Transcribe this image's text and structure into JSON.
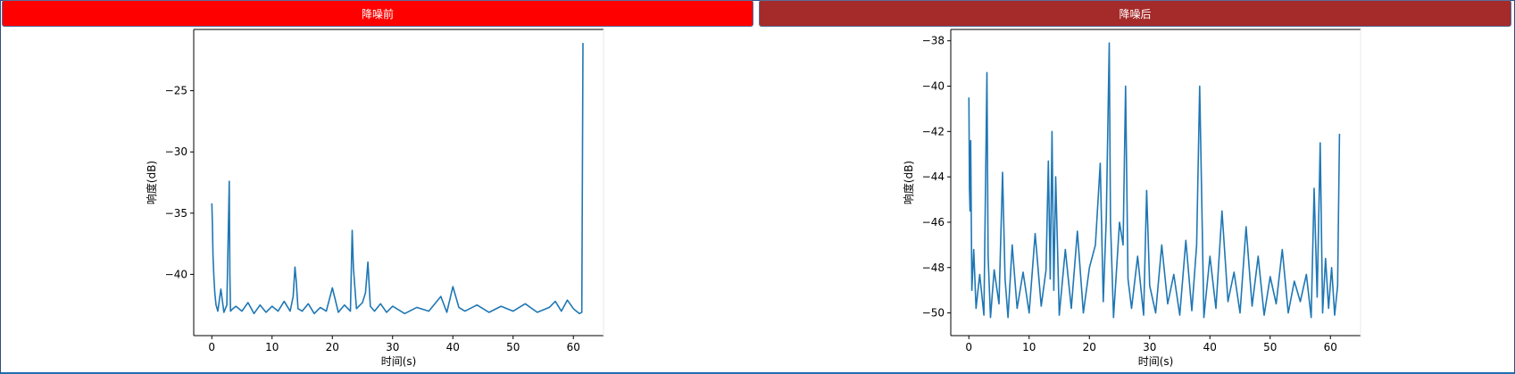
{
  "panels": [
    {
      "id": "before",
      "header": "降噪前",
      "header_color": "#ff0000"
    },
    {
      "id": "after",
      "header": "降噪后",
      "header_color": "#a52a2a"
    }
  ],
  "chart_data": [
    {
      "type": "line",
      "title": "",
      "xlabel": "时间(s)",
      "ylabel": "响度(dB)",
      "xlim": [
        -3,
        65
      ],
      "ylim": [
        -45,
        -20
      ],
      "xticks": [
        0,
        10,
        20,
        30,
        40,
        50,
        60
      ],
      "yticks": [
        -25,
        -30,
        -35,
        -40
      ],
      "line_color": "#1f77b4",
      "series": [
        {
          "x": [
            0.0,
            0.1,
            0.2,
            0.35,
            0.5,
            0.7,
            1.0,
            1.5,
            2.0,
            2.5,
            2.9,
            3.0,
            3.1,
            3.5,
            4.0,
            5.0,
            6.0,
            7.0,
            8.0,
            9.0,
            10.0,
            11.0,
            12.0,
            13.0,
            13.5,
            13.8,
            14.0,
            14.3,
            15.0,
            16.0,
            17.0,
            18.0,
            19.0,
            20.0,
            21.0,
            22.0,
            23.0,
            23.3,
            23.5,
            24.0,
            25.0,
            25.5,
            25.9,
            26.3,
            27.0,
            28.0,
            29.0,
            30.0,
            32.0,
            34.0,
            36.0,
            38.0,
            39.0,
            40.0,
            41.0,
            42.0,
            44.0,
            46.0,
            48.0,
            50.0,
            52.0,
            54.0,
            56.0,
            57.0,
            58.0,
            59.0,
            60.0,
            60.5,
            61.0,
            61.4,
            61.6
          ],
          "y": [
            -34.2,
            -35.8,
            -38.5,
            -40.2,
            -41.5,
            -42.5,
            -43.0,
            -41.2,
            -43.1,
            -42.5,
            -32.4,
            -40.0,
            -43.0,
            -42.8,
            -42.6,
            -43.0,
            -42.3,
            -43.2,
            -42.5,
            -43.1,
            -42.6,
            -43.0,
            -42.2,
            -43.0,
            -41.8,
            -39.4,
            -40.5,
            -42.8,
            -43.0,
            -42.4,
            -43.2,
            -42.7,
            -43.0,
            -41.1,
            -43.1,
            -42.5,
            -43.0,
            -36.4,
            -39.5,
            -42.8,
            -42.3,
            -41.5,
            -39.0,
            -42.6,
            -43.0,
            -42.4,
            -43.1,
            -42.6,
            -43.2,
            -42.7,
            -43.0,
            -41.8,
            -43.1,
            -41.0,
            -42.7,
            -43.0,
            -42.5,
            -43.1,
            -42.6,
            -43.0,
            -42.4,
            -43.1,
            -42.7,
            -42.2,
            -43.0,
            -42.1,
            -42.8,
            -43.0,
            -43.2,
            -43.1,
            -21.1
          ]
        }
      ]
    },
    {
      "type": "line",
      "title": "",
      "xlabel": "时间(s)",
      "ylabel": "响度(dB)",
      "xlim": [
        -3,
        65
      ],
      "ylim": [
        -51,
        -37.5
      ],
      "xticks": [
        0,
        10,
        20,
        30,
        40,
        50,
        60
      ],
      "yticks": [
        -38,
        -40,
        -42,
        -44,
        -46,
        -48,
        -50
      ],
      "line_color": "#1f77b4",
      "series": [
        {
          "x": [
            0.0,
            0.1,
            0.2,
            0.3,
            0.5,
            0.8,
            1.2,
            1.8,
            2.5,
            3.0,
            3.2,
            3.6,
            4.2,
            5.0,
            5.6,
            6.0,
            6.5,
            7.2,
            8.0,
            9.0,
            10.0,
            11.0,
            12.0,
            12.8,
            13.2,
            13.5,
            13.8,
            14.1,
            14.4,
            15.0,
            16.0,
            17.0,
            18.0,
            19.0,
            20.0,
            21.0,
            21.8,
            22.3,
            22.8,
            23.3,
            23.5,
            24.0,
            25.0,
            25.6,
            26.0,
            26.4,
            27.0,
            28.0,
            29.0,
            29.5,
            30.0,
            31.0,
            32.0,
            33.0,
            34.0,
            35.0,
            36.0,
            37.0,
            37.8,
            38.3,
            39.0,
            40.0,
            41.0,
            42.0,
            43.0,
            44.0,
            45.0,
            46.0,
            47.0,
            48.0,
            49.0,
            50.0,
            51.0,
            52.0,
            53.0,
            54.0,
            55.0,
            56.0,
            56.8,
            57.3,
            57.8,
            58.3,
            58.7,
            59.2,
            59.7,
            60.2,
            60.7,
            61.2,
            61.5
          ],
          "y": [
            -40.5,
            -44.5,
            -45.5,
            -42.4,
            -49.0,
            -47.2,
            -49.8,
            -48.3,
            -50.1,
            -39.4,
            -47.5,
            -50.2,
            -48.1,
            -49.6,
            -43.8,
            -48.5,
            -50.2,
            -47.0,
            -49.8,
            -48.2,
            -50.0,
            -46.5,
            -49.7,
            -48.1,
            -43.3,
            -48.5,
            -42.0,
            -49.0,
            -44.0,
            -50.1,
            -47.2,
            -49.8,
            -46.4,
            -50.0,
            -48.0,
            -47.0,
            -43.4,
            -49.5,
            -45.8,
            -38.1,
            -46.0,
            -50.2,
            -46.0,
            -47.0,
            -40.0,
            -48.5,
            -49.8,
            -47.5,
            -50.1,
            -44.6,
            -48.8,
            -50.0,
            -47.0,
            -49.6,
            -48.3,
            -50.1,
            -46.8,
            -49.9,
            -47.0,
            -40.0,
            -50.2,
            -47.5,
            -49.8,
            -45.5,
            -49.5,
            -48.2,
            -50.0,
            -46.2,
            -49.7,
            -47.5,
            -50.1,
            -48.4,
            -49.6,
            -47.2,
            -50.0,
            -48.6,
            -49.5,
            -48.3,
            -50.2,
            -44.5,
            -49.3,
            -42.5,
            -50.0,
            -47.6,
            -49.8,
            -48.0,
            -50.1,
            -48.8,
            -42.1
          ]
        }
      ]
    }
  ]
}
